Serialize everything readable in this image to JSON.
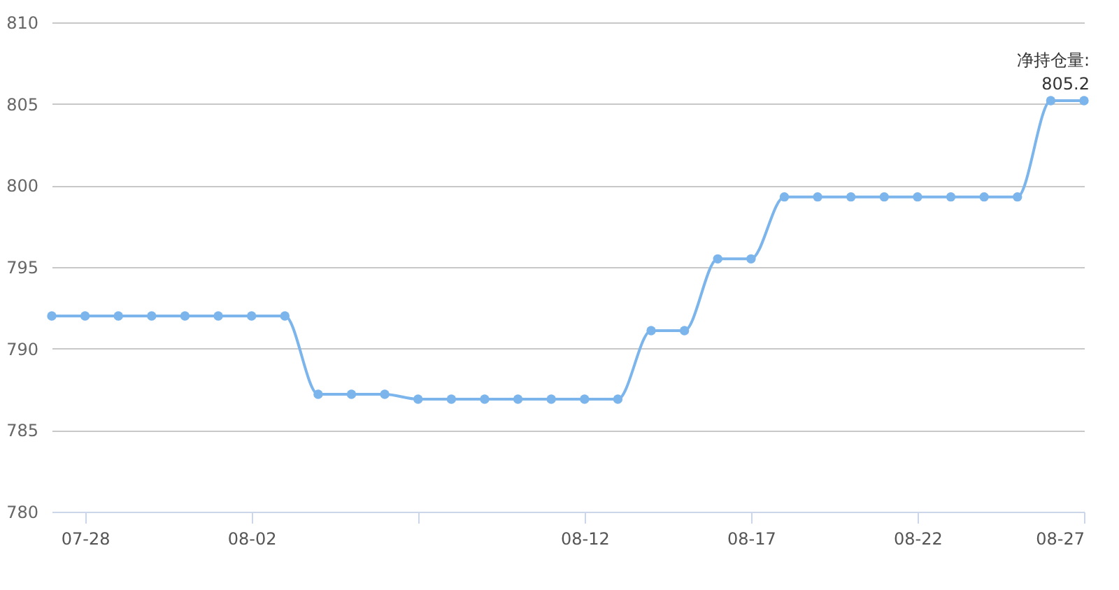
{
  "chart_data": {
    "type": "line",
    "x": [
      "--07-27",
      "--07-28",
      "--07-29",
      "--07-30",
      "--07-31",
      "--08-01",
      "--08-02",
      "--08-03",
      "--08-04",
      "--08-05",
      "--08-06",
      "--08-07",
      "--08-08",
      "--08-09",
      "--08-10",
      "--08-11",
      "--08-12",
      "--08-13",
      "--08-14",
      "--08-15",
      "--08-16",
      "--08-17",
      "--08-18",
      "--08-19",
      "--08-20",
      "--08-21",
      "--08-22",
      "--08-23",
      "--08-24",
      "--08-25",
      "--08-26",
      "--08-27"
    ],
    "series": [
      {
        "color": "#7cb5ec",
        "values": [
          792,
          792,
          792,
          792,
          792,
          792,
          792,
          792,
          787.2,
          787.2,
          787.2,
          786.9,
          786.9,
          786.9,
          786.9,
          786.9,
          786.9,
          786.9,
          791.1,
          791.1,
          795.5,
          795.5,
          799.3,
          799.3,
          799.3,
          799.3,
          799.3,
          799.3,
          799.3,
          799.3,
          805.2,
          805.2
        ]
      }
    ],
    "xlim": [
      "--07-27",
      "--08-27"
    ],
    "xticks": [
      {
        "value": "--07-28",
        "label": "07-28"
      },
      {
        "value": "--08-02",
        "label": "08-02"
      },
      {
        "value": "--08-07",
        "label": null
      },
      {
        "value": "--08-12",
        "label": "08-12"
      },
      {
        "value": "--08-17",
        "label": "08-17"
      },
      {
        "value": "--08-22",
        "label": "08-22"
      },
      {
        "value": "--08-27",
        "label": "08-27"
      }
    ],
    "ylim": [
      780,
      810
    ],
    "yticks": [
      780,
      785,
      790,
      795,
      800,
      805,
      810
    ],
    "grid": "y",
    "marker": "circle",
    "line_style": "solid",
    "annotations": [
      {
        "text": "净持仓量:\n805.2",
        "x": "--08-27",
        "y": 805.2
      }
    ]
  }
}
